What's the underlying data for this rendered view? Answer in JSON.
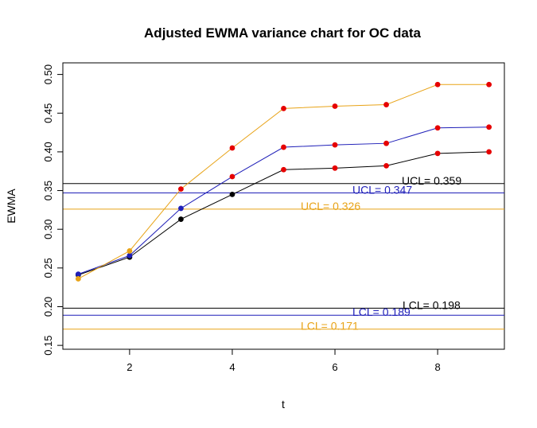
{
  "chart_data": {
    "type": "line",
    "title": "Adjusted EWMA variance chart for OC data",
    "xlabel": "t",
    "ylabel": "EWMA",
    "xlim": [
      0.7,
      9.3
    ],
    "ylim": [
      0.145,
      0.515
    ],
    "x_ticks": [
      2,
      4,
      6,
      8
    ],
    "y_ticks": [
      0.15,
      0.2,
      0.25,
      0.3,
      0.35,
      0.4,
      0.45,
      0.5
    ],
    "x": [
      1,
      2,
      3,
      4,
      5,
      6,
      7,
      8,
      9
    ],
    "grid": false,
    "out_of_control_point_color": "#e60000",
    "series": [
      {
        "color": "#000000",
        "values": [
          0.241,
          0.264,
          0.313,
          0.345,
          0.377,
          0.379,
          0.382,
          0.398,
          0.4
        ],
        "ucl": 0.359,
        "lcl": 0.198,
        "ucl_label": "UCL= 0.359",
        "lcl_label": "LCL= 0.198"
      },
      {
        "color": "#1f1fb8",
        "values": [
          0.242,
          0.266,
          0.327,
          0.368,
          0.406,
          0.409,
          0.411,
          0.431,
          0.432
        ],
        "ucl": 0.347,
        "lcl": 0.189,
        "ucl_label": "UCL= 0.347",
        "lcl_label": "LCL= 0.189"
      },
      {
        "color": "#e8a317",
        "values": [
          0.236,
          0.272,
          0.352,
          0.405,
          0.456,
          0.459,
          0.461,
          0.487,
          0.487
        ],
        "ucl": 0.326,
        "lcl": 0.171,
        "ucl_label": "UCL= 0.326",
        "lcl_label": "LCL= 0.171"
      }
    ]
  }
}
